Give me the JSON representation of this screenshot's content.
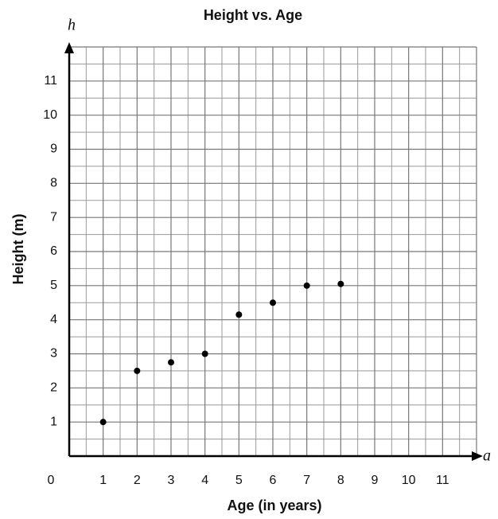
{
  "chart_data": {
    "type": "scatter",
    "title": "Height vs. Age",
    "x_label": "Age (in years)",
    "y_label": "Height (m)",
    "x_axis_symbol": "a",
    "y_axis_symbol": "h",
    "x": [
      1,
      2,
      3,
      4,
      5,
      6,
      7,
      8
    ],
    "series": [
      {
        "name": "Height",
        "color": "#000000",
        "values": [
          1,
          2.5,
          2.75,
          3,
          4.15,
          4.5,
          5,
          5.05
        ]
      }
    ],
    "xlim": [
      0,
      12
    ],
    "ylim": [
      0,
      12
    ],
    "xticks": [
      0,
      1,
      2,
      3,
      4,
      5,
      6,
      7,
      8,
      9,
      10,
      11
    ],
    "yticks": [
      1,
      2,
      3,
      4,
      5,
      6,
      7,
      8,
      9,
      10,
      11
    ],
    "grid": true
  }
}
